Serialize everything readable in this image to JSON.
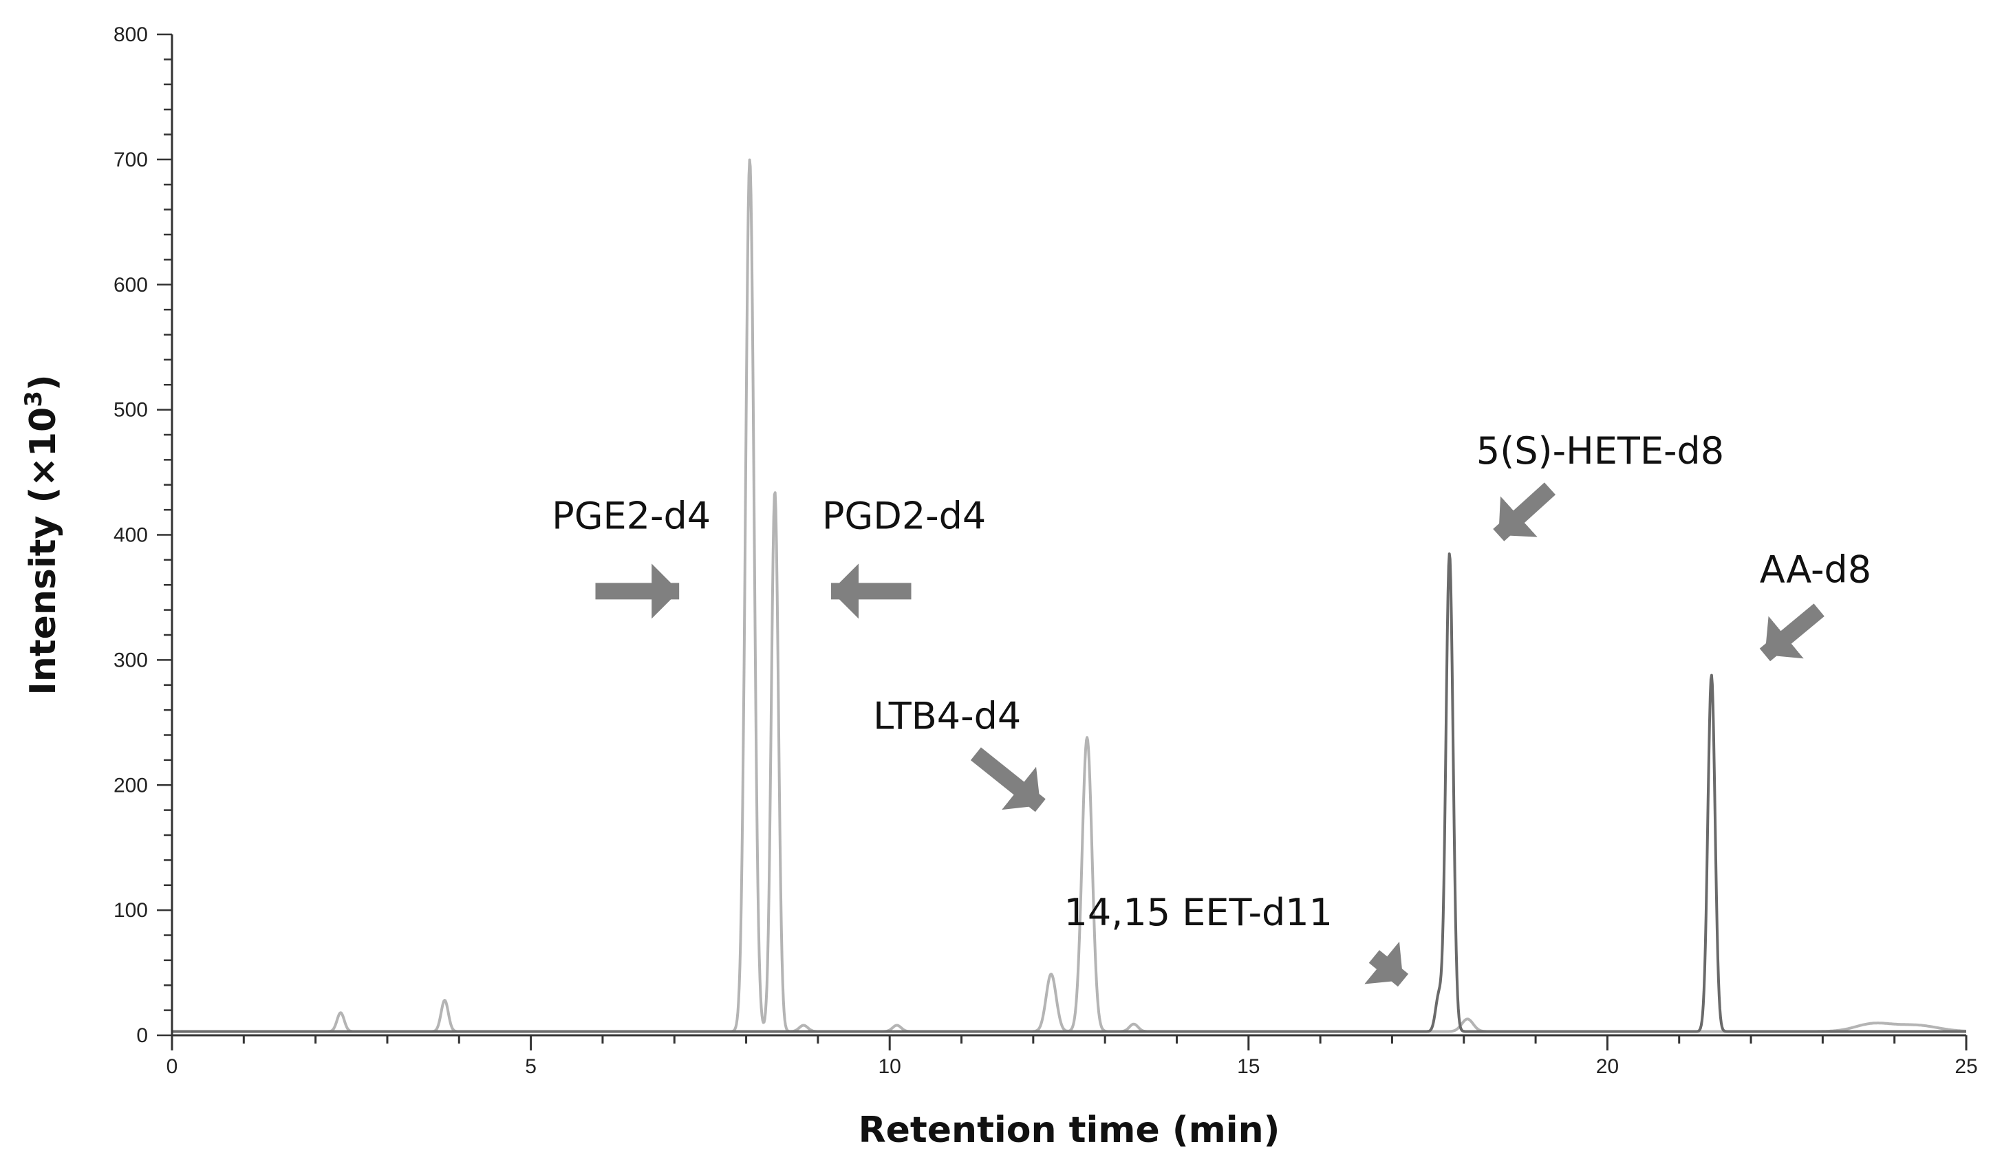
{
  "chart_data": {
    "type": "line",
    "xlabel": "Retention time (min)",
    "ylabel_main": "Intensity (×10",
    "ylabel_sup": "3",
    "ylabel_close": ")",
    "xlim": [
      0,
      25
    ],
    "ylim": [
      0,
      800
    ],
    "x_ticks": [
      0,
      5,
      10,
      15,
      20,
      25
    ],
    "y_ticks": [
      0,
      100,
      200,
      300,
      400,
      500,
      600,
      700,
      800
    ],
    "grid": false,
    "colors": {
      "light_trace": "#b4b4b4",
      "dark_trace": "#6a6a6a",
      "arrow": "#808080",
      "axis": "#333333"
    },
    "baseline": 3,
    "series": [
      {
        "color_key": "light_trace",
        "peaks": [
          {
            "x": 2.35,
            "y": 15,
            "w": 0.05
          },
          {
            "x": 3.8,
            "y": 25,
            "w": 0.05
          },
          {
            "x": 8.05,
            "y": 697,
            "w": 0.06
          },
          {
            "x": 8.4,
            "y": 432,
            "w": 0.05
          },
          {
            "x": 8.8,
            "y": 5,
            "w": 0.06
          },
          {
            "x": 10.1,
            "y": 5,
            "w": 0.06
          },
          {
            "x": 12.25,
            "y": 46,
            "w": 0.07
          },
          {
            "x": 12.75,
            "y": 235,
            "w": 0.07
          },
          {
            "x": 13.4,
            "y": 6,
            "w": 0.06
          },
          {
            "x": 18.05,
            "y": 10,
            "w": 0.08
          },
          {
            "x": 23.7,
            "y": 6,
            "w": 0.25
          },
          {
            "x": 24.3,
            "y": 5,
            "w": 0.3
          }
        ]
      },
      {
        "color_key": "dark_trace",
        "peaks": [
          {
            "x": 17.65,
            "y": 28,
            "w": 0.045
          },
          {
            "x": 17.8,
            "y": 382,
            "w": 0.05
          },
          {
            "x": 21.45,
            "y": 285,
            "w": 0.05
          }
        ]
      }
    ],
    "annotations": [
      {
        "text": "PGE2-d4",
        "x": 6.4,
        "y": 405,
        "arrow_from": [
          5.9,
          355
        ],
        "arrow_to": [
          7.45,
          355
        ]
      },
      {
        "text": "PGD2-d4",
        "x": 10.2,
        "y": 405,
        "arrow_from": [
          10.3,
          355
        ],
        "arrow_to": [
          8.8,
          355
        ]
      },
      {
        "text": "LTB4-d4",
        "x": 10.8,
        "y": 245,
        "arrow_from": [
          11.2,
          225
        ],
        "arrow_to": [
          12.4,
          170
        ]
      },
      {
        "text": "14,15 EET-d11",
        "x": 14.3,
        "y": 88,
        "arrow_from": [
          16.75,
          63
        ],
        "arrow_to": [
          17.45,
          30
        ]
      },
      {
        "text": "5(S)-HETE-d8",
        "x": 19.9,
        "y": 457,
        "arrow_from": [
          19.2,
          437
        ],
        "arrow_to": [
          18.2,
          385
        ]
      },
      {
        "text": "AA-d8",
        "x": 22.9,
        "y": 362,
        "arrow_from": [
          22.95,
          340
        ],
        "arrow_to": [
          21.9,
          290
        ]
      }
    ]
  }
}
